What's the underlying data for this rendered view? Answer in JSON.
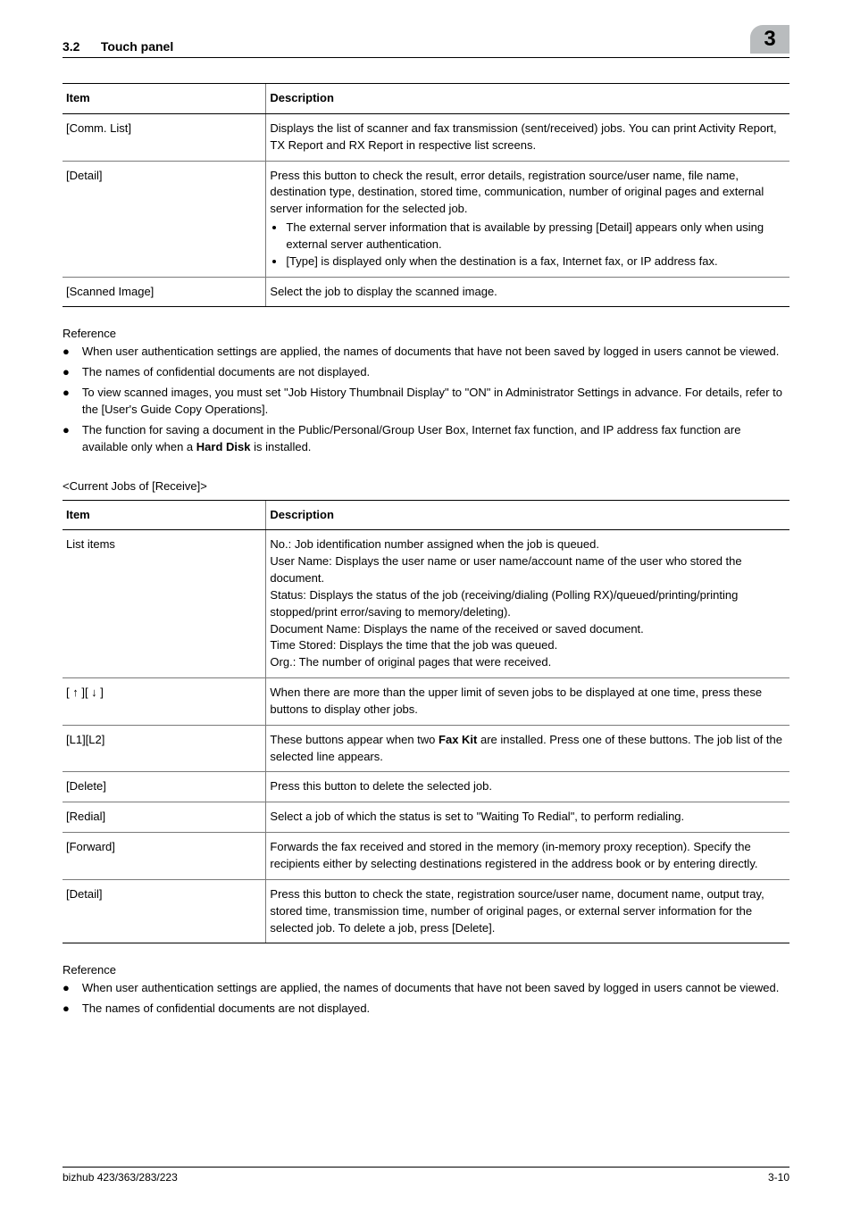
{
  "header": {
    "section_number": "3.2",
    "section_title": "Touch panel",
    "chapter_badge": "3"
  },
  "table1": {
    "columns": {
      "item": "Item",
      "desc": "Description"
    },
    "rows": [
      {
        "item": "[Comm. List]",
        "desc": "Displays the list of scanner and fax transmission (sent/received) jobs. You can print Activity Report, TX Report and RX Report in respective list screens."
      },
      {
        "item": "[Detail]",
        "desc_pre": "Press this button to check the result, error details, registration source/user name, file name, destination type, destination, stored time, communication, number of original pages and external server information for the selected job.",
        "bullets": [
          "The external server information that is available by pressing [Detail] appears only when using external server authentication.",
          "[Type] is displayed only when the destination is a fax, Internet fax, or IP address fax."
        ]
      },
      {
        "item": "[Scanned Image]",
        "desc": "Select the job to display the scanned image."
      }
    ]
  },
  "reference1": {
    "heading": "Reference",
    "items": [
      "When user authentication settings are applied, the names of documents that have not been saved by logged in users cannot be viewed.",
      "The names of confidential documents are not displayed.",
      "To view scanned images, you must set \"Job History Thumbnail Display\" to \"ON\" in Administrator Settings in advance. For details, refer to the [User's Guide Copy Operations]."
    ],
    "last_item_pre": "The function for saving a document in the Public/Personal/Group User Box, Internet fax function, and IP address fax function are available only when a ",
    "last_item_bold": "Hard Disk",
    "last_item_post": " is installed."
  },
  "subheading": "<Current Jobs of [Receive]>",
  "table2": {
    "columns": {
      "item": "Item",
      "desc": "Description"
    },
    "rows": [
      {
        "item": "List items",
        "desc": "No.: Job identification number assigned when the job is queued.\nUser Name: Displays the user name or user name/account name of the user who stored the document.\nStatus: Displays the status of the job (receiving/dialing (Polling RX)/queued/printing/printing stopped/print error/saving to memory/deleting).\nDocument Name: Displays the name of the received or saved document.\nTime Stored: Displays the time that the job was queued.\nOrg.: The number of original pages that were received."
      },
      {
        "item": "[ ↑ ][ ↓ ]",
        "desc": "When there are more than the upper limit of seven jobs to be displayed at one time, press these buttons to display other jobs."
      },
      {
        "item": "[L1][L2]",
        "desc_pre": "These buttons appear when two ",
        "desc_bold": "Fax Kit",
        "desc_post": " are installed. Press one of these buttons. The job list of the selected line appears."
      },
      {
        "item": "[Delete]",
        "desc": "Press this button to delete the selected job."
      },
      {
        "item": "[Redial]",
        "desc": "Select a job of which the status is set to \"Waiting To Redial\", to perform redialing."
      },
      {
        "item": "[Forward]",
        "desc": "Forwards the fax received and stored in the memory (in-memory proxy reception). Specify the recipients either by selecting destinations registered in the address book or by entering directly."
      },
      {
        "item": "[Detail]",
        "desc": "Press this button to check the state, registration source/user name, document name, output tray, stored time, transmission time, number of original pages, or external server information for the selected job. To delete a job, press [Delete]."
      }
    ]
  },
  "reference2": {
    "heading": "Reference",
    "items": [
      "When user authentication settings are applied, the names of documents that have not been saved by logged in users cannot be viewed.",
      "The names of confidential documents are not displayed."
    ]
  },
  "footer": {
    "left": "bizhub 423/363/283/223",
    "right": "3-10"
  }
}
